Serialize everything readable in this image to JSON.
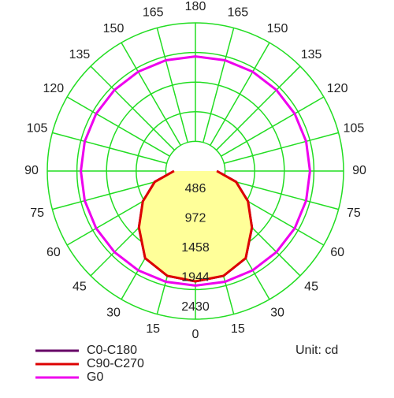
{
  "chart_data": {
    "type": "polar",
    "unit_label": "Unit: cd",
    "rlim": [
      0,
      2430
    ],
    "rticks": [
      486,
      972,
      1458,
      1944,
      2430
    ],
    "angle_ticks": [
      0,
      15,
      30,
      45,
      60,
      75,
      90,
      105,
      120,
      135,
      150,
      165,
      180,
      {
        "value": -15,
        "label": "15"
      },
      {
        "value": -30,
        "label": "30"
      },
      {
        "value": -45,
        "label": "45"
      },
      {
        "value": -60,
        "label": "60"
      },
      {
        "value": -75,
        "label": "75"
      },
      {
        "value": -90,
        "label": "90"
      },
      {
        "value": -105,
        "label": "105"
      },
      {
        "value": -120,
        "label": "120"
      },
      {
        "value": -135,
        "label": "135"
      },
      {
        "value": -150,
        "label": "150"
      },
      {
        "value": -165,
        "label": "165"
      }
    ],
    "grid_color": "#22dd22",
    "angles": [
      -180,
      -165,
      -150,
      -135,
      -120,
      -105,
      -90,
      -75,
      -60,
      -45,
      -30,
      -15,
      0,
      15,
      30,
      45,
      60,
      75,
      90,
      105,
      120,
      135,
      150,
      165,
      180
    ],
    "series": [
      {
        "name": "C0-C180",
        "color": "#660066",
        "values": [
          null,
          null,
          null,
          null,
          null,
          null,
          350,
          690,
          995,
          1310,
          1650,
          1780,
          1810,
          1780,
          1650,
          1310,
          995,
          690,
          350,
          null,
          null,
          null,
          null,
          null,
          null
        ]
      },
      {
        "name": "C90-C270",
        "color": "#dd0000",
        "fill": "#ffff99",
        "values": [
          null,
          null,
          null,
          null,
          null,
          null,
          350,
          690,
          995,
          1310,
          1650,
          1780,
          1810,
          1780,
          1650,
          1310,
          995,
          690,
          350,
          null,
          null,
          null,
          null,
          null,
          null
        ]
      },
      {
        "name": "G0",
        "color": "#ee00ee",
        "values": [
          1880,
          1880,
          1880,
          1880,
          1880,
          1880,
          1880,
          1880,
          1880,
          1880,
          1880,
          1880,
          1880,
          1880,
          1880,
          1880,
          1880,
          1880,
          1880,
          1880,
          1880,
          1880,
          1880,
          1880,
          1880
        ]
      }
    ]
  }
}
